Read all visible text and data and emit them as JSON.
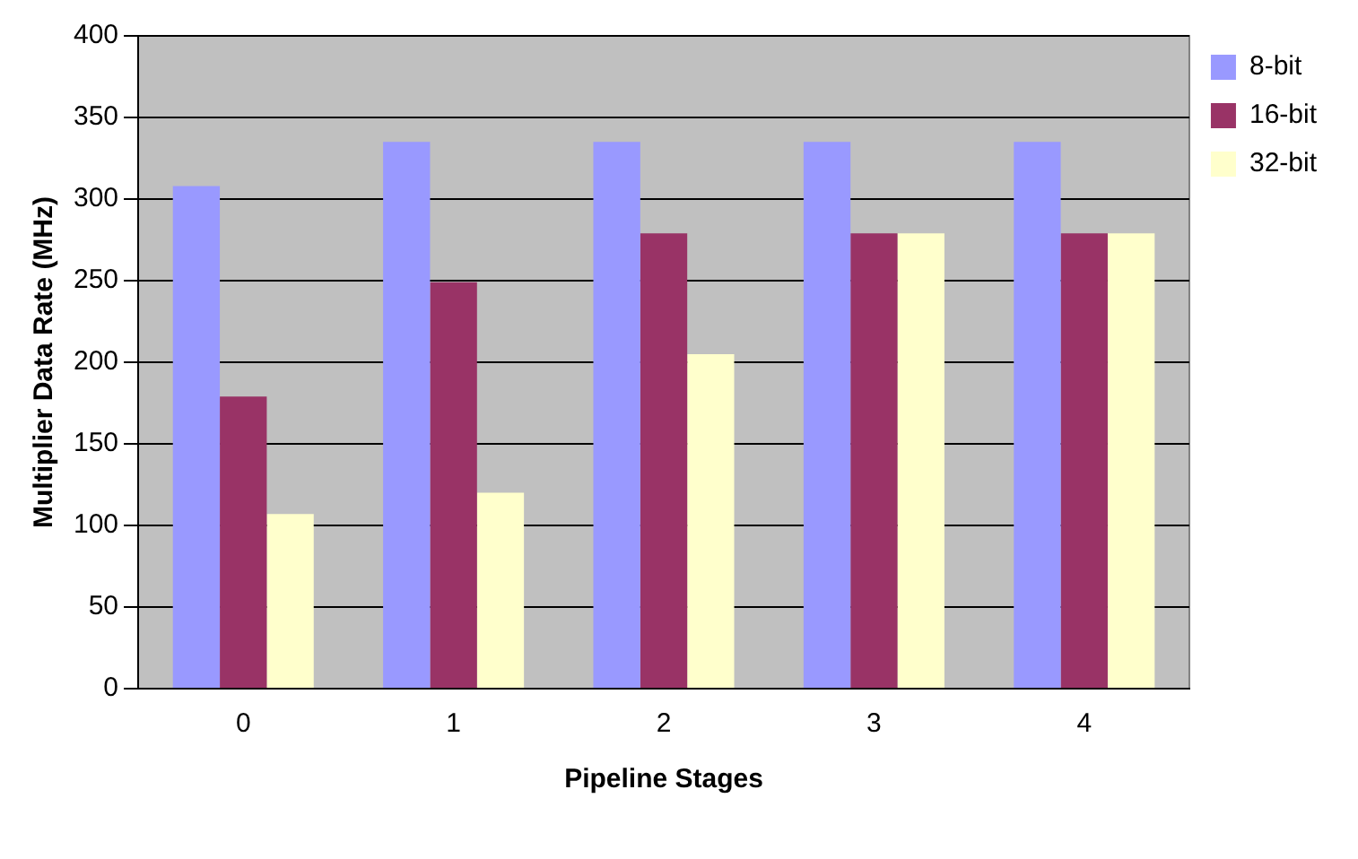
{
  "chart_data": {
    "type": "bar",
    "xlabel": "Pipeline Stages",
    "ylabel": "Multiplier Data Rate (MHz)",
    "categories": [
      "0",
      "1",
      "2",
      "3",
      "4"
    ],
    "series": [
      {
        "name": "8-bit",
        "color": "#9999ff",
        "values": [
          308,
          335,
          335,
          335,
          335
        ]
      },
      {
        "name": "16-bit",
        "color": "#993366",
        "values": [
          179,
          249,
          279,
          279,
          279
        ]
      },
      {
        "name": "32-bit",
        "color": "#ffffcc",
        "values": [
          107,
          120,
          205,
          279,
          279
        ]
      }
    ],
    "ylim": [
      0,
      400
    ],
    "yticks": [
      0,
      50,
      100,
      150,
      200,
      250,
      300,
      350,
      400
    ],
    "grid": "y",
    "legend": "top right"
  }
}
